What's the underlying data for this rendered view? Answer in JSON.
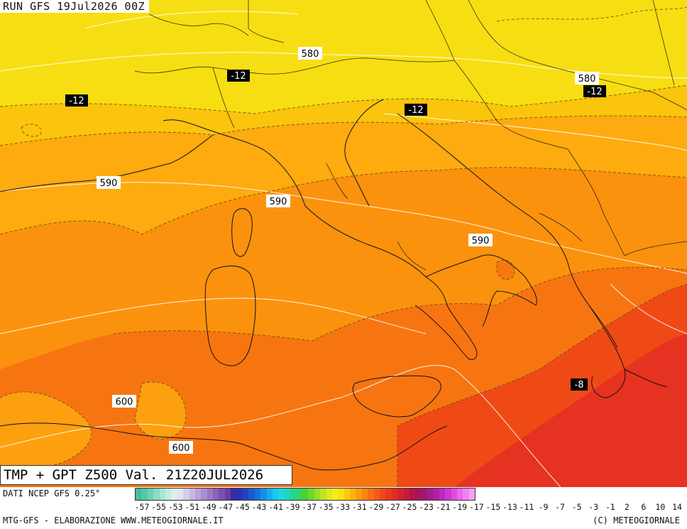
{
  "run_label": "RUN GFS 19Jul2026 00Z",
  "title": "TMP + GPT Z500 Val. 21Z20JUL2026",
  "source_label": "DATI NCEP GFS 0.25°",
  "footer_left": "MTG-GFS - ELABORAZIONE WWW.METEOGIORNALE.IT",
  "footer_right": "(C) METEOGIORNALE",
  "geopotential_labels": [
    "580",
    "580",
    "590",
    "590",
    "590",
    "600",
    "600"
  ],
  "temperature_labels": [
    "-12",
    "-12",
    "-12",
    "-12",
    "-8"
  ],
  "colorbar": {
    "colors": [
      "#3fbf9f",
      "#55c8aa",
      "#6ed2b6",
      "#8bdcc4",
      "#a8e6d2",
      "#c4ece0",
      "#dcefe9",
      "#e5e2f0",
      "#d6cde8",
      "#c8b8e0",
      "#b9a3d8",
      "#a98dce",
      "#9a78c4",
      "#8b63ba",
      "#7b50b0",
      "#6a3ea6",
      "#3a2aa8",
      "#2a33b0",
      "#2244c0",
      "#1a5ad0",
      "#1473dd",
      "#1290e8",
      "#14aef0",
      "#18c8f4",
      "#1bd8e0",
      "#20d8b8",
      "#28d68c",
      "#34d45e",
      "#46d336",
      "#6fd82a",
      "#98de28",
      "#bee426",
      "#dfe922",
      "#f4ec1c",
      "#fee016",
      "#fecb12",
      "#feb410",
      "#fd9c0e",
      "#fb850e",
      "#f86e10",
      "#f45a12",
      "#ef4816",
      "#e83a1c",
      "#de2e24",
      "#d2242e",
      "#c31c3a",
      "#b41646",
      "#a81458",
      "#a01870",
      "#a41c8c",
      "#b020a8",
      "#c028c0",
      "#d038d4",
      "#de4ce2",
      "#ea66ee",
      "#f282f4",
      "#f8a0f8"
    ],
    "tick_labels": [
      "-57",
      "-55",
      "-53",
      "-51",
      "-49",
      "-47",
      "-45",
      "-43",
      "-41",
      "-39",
      "-37",
      "-35",
      "-33",
      "-31",
      "-29",
      "-27",
      "-25",
      "-23",
      "-21",
      "-19",
      "-17",
      "-15",
      "-13",
      "-11",
      "-9",
      "-7",
      "-5",
      "-3",
      "-1",
      "2",
      "6",
      "10",
      "14"
    ]
  },
  "field_colors": {
    "yellow": "#f7de12",
    "yellow_orange": "#fbc40d",
    "orange_light": "#fdab0f",
    "orange": "#fb920d",
    "orange_dark": "#f77511",
    "red_orange": "#ef4a16",
    "red": "#e63220"
  }
}
